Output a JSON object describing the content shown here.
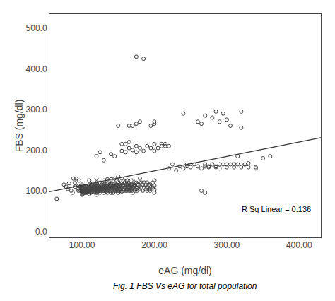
{
  "chart_data": {
    "type": "scatter",
    "xlabel": "eAG (mg/dl)",
    "ylabel": "FBS (mg/dl)",
    "annotation": "R Sq Linear = 0.136",
    "caption": "Fig. 1 FBS Vs eAG for total population",
    "xlim": [
      55,
      430
    ],
    "ylim": [
      -15,
      535
    ],
    "xticks": [
      {
        "value": 100,
        "label": "100.00"
      },
      {
        "value": 200,
        "label": "200.00"
      },
      {
        "value": 300,
        "label": "300.00"
      },
      {
        "value": 400,
        "label": "400.00"
      }
    ],
    "yticks": [
      {
        "value": 0,
        "label": "0.0"
      },
      {
        "value": 100,
        "label": "100.0"
      },
      {
        "value": 200,
        "label": "200.0"
      },
      {
        "value": 300,
        "label": "300.0"
      },
      {
        "value": 400,
        "label": "400.0"
      },
      {
        "value": 500,
        "label": "500.0"
      }
    ],
    "grid": false,
    "series": [
      {
        "type": "scatter",
        "marker": "circle-open",
        "color": "#444444",
        "x": [
          65,
          75,
          78,
          80,
          82,
          85,
          87,
          88,
          90,
          90,
          92,
          92,
          95,
          95,
          95,
          96,
          97,
          98,
          98,
          99,
          100,
          100,
          100,
          100,
          100,
          100,
          100,
          100,
          101,
          101,
          101,
          102,
          102,
          102,
          102,
          103,
          103,
          103,
          104,
          104,
          104,
          105,
          105,
          105,
          105,
          106,
          106,
          106,
          107,
          107,
          107,
          108,
          108,
          108,
          109,
          109,
          110,
          110,
          110,
          110,
          110,
          110,
          111,
          111,
          112,
          112,
          112,
          113,
          113,
          113,
          114,
          114,
          114,
          115,
          115,
          115,
          116,
          116,
          117,
          117,
          117,
          118,
          118,
          118,
          119,
          119,
          120,
          120,
          120,
          120,
          120,
          120,
          120,
          121,
          121,
          121,
          122,
          122,
          122,
          123,
          123,
          123,
          124,
          124,
          125,
          125,
          125,
          125,
          126,
          126,
          127,
          127,
          127,
          128,
          128,
          129,
          129,
          130,
          130,
          130,
          130,
          130,
          131,
          131,
          132,
          132,
          132,
          133,
          133,
          133,
          134,
          134,
          135,
          135,
          135,
          135,
          135,
          136,
          136,
          137,
          137,
          137,
          138,
          138,
          139,
          139,
          140,
          140,
          140,
          140,
          140,
          141,
          141,
          142,
          142,
          142,
          143,
          143,
          143,
          144,
          144,
          145,
          145,
          145,
          145,
          146,
          146,
          147,
          147,
          148,
          148,
          148,
          149,
          149,
          150,
          150,
          150,
          150,
          150,
          151,
          151,
          152,
          152,
          153,
          153,
          154,
          154,
          155,
          155,
          155,
          155,
          156,
          156,
          157,
          157,
          158,
          158,
          159,
          159,
          160,
          160,
          160,
          160,
          161,
          161,
          162,
          162,
          162,
          163,
          163,
          164,
          164,
          165,
          165,
          165,
          166,
          166,
          167,
          167,
          168,
          168,
          168,
          169,
          169,
          170,
          170,
          170,
          170,
          172,
          172,
          173,
          173,
          174,
          174,
          175,
          175,
          176,
          176,
          178,
          178,
          180,
          180,
          180,
          182,
          182,
          184,
          184,
          186,
          186,
          188,
          188,
          190,
          190,
          190,
          192,
          192,
          194,
          194,
          196,
          196,
          198,
          198,
          200,
          200,
          200,
          200,
          120,
          125,
          130,
          140,
          145,
          155,
          160,
          165,
          170,
          175,
          175,
          180,
          185,
          190,
          195,
          200,
          200,
          205,
          210,
          215,
          170,
          175,
          180,
          195,
          200,
          200,
          210,
          215,
          220,
          150,
          155,
          160,
          165,
          220,
          225,
          230,
          235,
          240,
          245,
          250,
          255,
          260,
          265,
          270,
          275,
          280,
          285,
          290,
          295,
          300,
          305,
          310,
          315,
          320,
          325,
          330,
          340,
          350,
          360,
          270,
          280,
          285,
          290,
          290,
          295,
          300,
          300,
          305,
          310,
          315,
          320,
          320,
          325,
          330,
          340,
          260,
          265,
          270,
          240,
          245,
          275,
          285,
          265,
          270,
          175,
          185,
          165
        ],
        "values": [
          80,
          115,
          110,
          105,
          118,
          100,
          95,
          130,
          110,
          120,
          130,
          113,
          100,
          112,
          105,
          125,
          108,
          110,
          100,
          105,
          90,
          95,
          98,
          100,
          105,
          108,
          112,
          115,
          92,
          100,
          108,
          95,
          100,
          105,
          110,
          98,
          103,
          110,
          95,
          100,
          108,
          95,
          100,
          105,
          112,
          98,
          103,
          108,
          95,
          100,
          110,
          98,
          105,
          112,
          100,
          108,
          92,
          98,
          103,
          108,
          115,
          125,
          100,
          105,
          95,
          103,
          110,
          100,
          108,
          115,
          98,
          105,
          112,
          100,
          108,
          118,
          103,
          110,
          98,
          105,
          112,
          100,
          108,
          115,
          103,
          112,
          90,
          95,
          100,
          105,
          110,
          120,
          130,
          100,
          108,
          115,
          98,
          105,
          112,
          100,
          108,
          118,
          103,
          110,
          95,
          100,
          108,
          120,
          103,
          112,
          100,
          108,
          115,
          103,
          112,
          100,
          110,
          95,
          100,
          108,
          115,
          125,
          103,
          112,
          100,
          108,
          118,
          98,
          105,
          115,
          103,
          112,
          95,
          100,
          108,
          118,
          128,
          103,
          112,
          100,
          108,
          118,
          103,
          115,
          100,
          112,
          95,
          100,
          108,
          115,
          128,
          103,
          112,
          100,
          108,
          118,
          95,
          105,
          115,
          103,
          112,
          100,
          108,
          118,
          130,
          103,
          115,
          100,
          110,
          103,
          115,
          125,
          100,
          110,
          95,
          103,
          112,
          122,
          135,
          100,
          110,
          103,
          115,
          100,
          112,
          103,
          118,
          98,
          108,
          118,
          130,
          103,
          115,
          100,
          112,
          103,
          118,
          108,
          120,
          100,
          108,
          118,
          130,
          103,
          115,
          100,
          108,
          125,
          103,
          115,
          108,
          120,
          100,
          108,
          118,
          103,
          115,
          100,
          110,
          103,
          115,
          125,
          100,
          112,
          95,
          103,
          115,
          125,
          103,
          115,
          100,
          112,
          103,
          118,
          108,
          120,
          100,
          115,
          103,
          115,
          103,
          118,
          130,
          108,
          120,
          100,
          115,
          108,
          120,
          103,
          115,
          100,
          108,
          120,
          103,
          115,
          100,
          112,
          103,
          118,
          108,
          120,
          95,
          103,
          112,
          125,
          185,
          195,
          175,
          190,
          185,
          198,
          195,
          205,
          200,
          195,
          210,
          205,
          198,
          210,
          205,
          198,
          215,
          205,
          215,
          210,
          260,
          265,
          270,
          260,
          265,
          270,
          210,
          215,
          210,
          260,
          215,
          215,
          220,
          155,
          165,
          150,
          160,
          155,
          165,
          158,
          165,
          160,
          155,
          165,
          158,
          165,
          158,
          155,
          165,
          158,
          165,
          158,
          165,
          158,
          165,
          158,
          155,
          180,
          185,
          285,
          280,
          295,
          165,
          270,
          290,
          165,
          275,
          260,
          165,
          185,
          295,
          255,
          165,
          168,
          158,
          270,
          265,
          160,
          290,
          160,
          160,
          160,
          100,
          95,
          430,
          425,
          260
        ]
      },
      {
        "type": "line",
        "line_style": "solid",
        "color": "#333333",
        "x": [
          55,
          430
        ],
        "values": [
          97.525,
          230.65
        ]
      }
    ]
  }
}
